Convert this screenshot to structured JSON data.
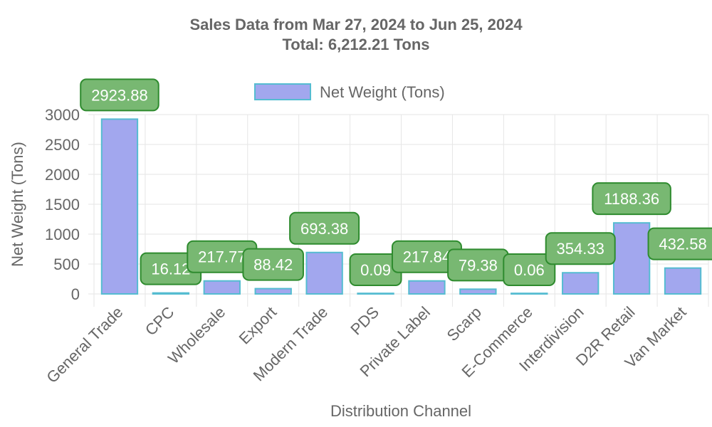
{
  "chart_data": {
    "type": "bar",
    "title": "Sales Data from Mar 27, 2024 to Jun 25, 2024",
    "subtitle": "Total: 6,212.21 Tons",
    "xlabel": "Distribution Channel",
    "ylabel": "Net Weight (Tons)",
    "ylim": [
      0,
      3000
    ],
    "yticks": [
      "0",
      "500",
      "1000",
      "1500",
      "2000",
      "2500",
      "3000"
    ],
    "ytick_values": [
      0,
      500,
      1000,
      1500,
      2000,
      2500,
      3000
    ],
    "grid": true,
    "legend_position": "top-center",
    "categories": [
      "General Trade",
      "CPC",
      "Wholesale",
      "Export",
      "Modern Trade",
      "PDS",
      "Private Label",
      "Scarp",
      "E-Commerce",
      "Interdivision",
      "D2R Retail",
      "Van Market"
    ],
    "series": [
      {
        "name": "Net Weight (Tons)",
        "values": [
          2923.88,
          16.12,
          217.77,
          88.42,
          693.38,
          0.09,
          217.84,
          79.38,
          0.06,
          354.33,
          1188.36,
          432.58
        ],
        "data_labels": [
          "2923.88",
          "16.12",
          "217.77",
          "88.42",
          "693.38",
          "0.09",
          "217.84",
          "79.38",
          "0.06",
          "354.33",
          "1188.36",
          "432.58"
        ]
      }
    ],
    "colors": {
      "bar_fill": "#a2a7ee",
      "bar_stroke": "#55bcd1",
      "label_fill": "#78b872",
      "label_stroke": "#2e8b2e",
      "grid": "#e6e6e6",
      "text": "#666666"
    }
  }
}
